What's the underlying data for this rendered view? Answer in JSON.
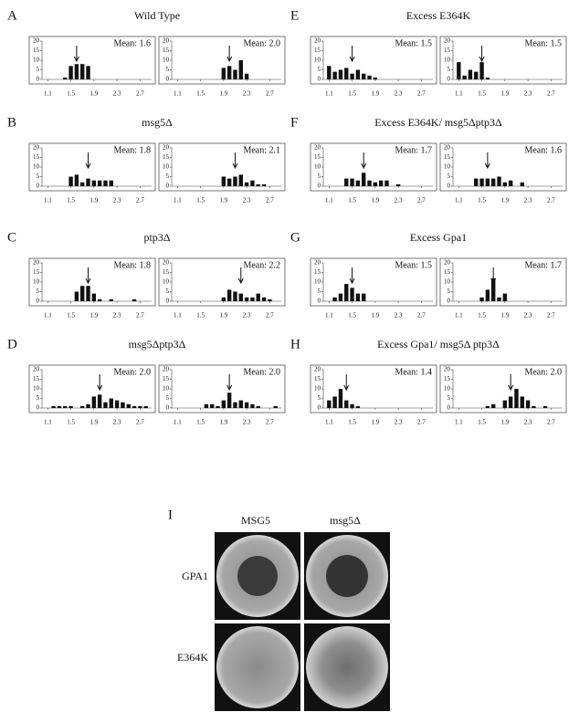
{
  "panels": [
    {
      "letter": "A",
      "title": "Wild Type"
    },
    {
      "letter": "B",
      "title": "msg5Δ"
    },
    {
      "letter": "C",
      "title": "ptp3Δ"
    },
    {
      "letter": "D",
      "title": "msg5Δptp3Δ"
    },
    {
      "letter": "E",
      "title": "Excess E364K"
    },
    {
      "letter": "F",
      "title": "Excess E364K/ msg5Δptp3Δ"
    },
    {
      "letter": "G",
      "title": "Excess Gpa1"
    },
    {
      "letter": "H",
      "title": "Excess Gpa1/ msg5Δ ptp3Δ"
    }
  ],
  "image_panel": {
    "letter": "I",
    "columns": [
      "MSG5",
      "msg5Δ"
    ],
    "rows": [
      "GPA1",
      "E364K"
    ]
  },
  "chart_data": [
    {
      "type": "bar",
      "annotation": "Mean: 1.6",
      "mean": 1.6,
      "x": [
        1.4,
        1.5,
        1.6,
        1.7,
        1.8
      ],
      "values": [
        1,
        7,
        8,
        8,
        7
      ],
      "xlim": [
        1.0,
        2.9
      ],
      "ylim": [
        0,
        20
      ],
      "xticks": [
        1.1,
        1.5,
        1.9,
        2.3,
        2.7
      ],
      "yticks": [
        0,
        5,
        10,
        15,
        20
      ]
    },
    {
      "type": "bar",
      "annotation": "Mean: 2.0",
      "mean": 2.0,
      "x": [
        1.9,
        2.0,
        2.1,
        2.2,
        2.3
      ],
      "values": [
        6,
        7,
        5,
        10,
        3
      ],
      "xlim": [
        1.0,
        2.9
      ],
      "ylim": [
        0,
        20
      ],
      "xticks": [
        1.1,
        1.5,
        1.9,
        2.3,
        2.7
      ],
      "yticks": [
        0,
        5,
        10,
        15,
        20
      ]
    },
    {
      "type": "bar",
      "annotation": "Mean: 1.8",
      "mean": 1.8,
      "x": [
        1.5,
        1.6,
        1.7,
        1.8,
        1.9,
        2.0,
        2.1,
        2.2
      ],
      "values": [
        5,
        6,
        2,
        4,
        3,
        3,
        3,
        3
      ],
      "xlim": [
        1.0,
        2.9
      ],
      "ylim": [
        0,
        20
      ],
      "xticks": [
        1.1,
        1.5,
        1.9,
        2.3,
        2.7
      ],
      "yticks": [
        0,
        5,
        10,
        15,
        20
      ]
    },
    {
      "type": "bar",
      "annotation": "Mean: 2.1",
      "mean": 2.1,
      "x": [
        1.9,
        2.0,
        2.1,
        2.2,
        2.3,
        2.4,
        2.5,
        2.6
      ],
      "values": [
        5,
        4,
        5,
        6,
        2,
        3,
        1,
        1
      ],
      "xlim": [
        1.0,
        2.9
      ],
      "ylim": [
        0,
        20
      ],
      "xticks": [
        1.1,
        1.5,
        1.9,
        2.3,
        2.7
      ],
      "yticks": [
        0,
        5,
        10,
        15,
        20
      ]
    },
    {
      "type": "bar",
      "annotation": "Mean: 1.8",
      "mean": 1.8,
      "x": [
        1.6,
        1.7,
        1.8,
        1.9,
        2.0,
        2.2,
        2.6
      ],
      "values": [
        5,
        8,
        8,
        4,
        1,
        1,
        1
      ],
      "xlim": [
        1.0,
        2.9
      ],
      "ylim": [
        0,
        20
      ],
      "xticks": [
        1.1,
        1.5,
        1.9,
        2.3,
        2.7
      ],
      "yticks": [
        0,
        5,
        10,
        15,
        20
      ]
    },
    {
      "type": "bar",
      "annotation": "Mean: 2.2",
      "mean": 2.2,
      "x": [
        1.9,
        2.0,
        2.1,
        2.2,
        2.3,
        2.4,
        2.5,
        2.6,
        2.7
      ],
      "values": [
        2,
        6,
        5,
        4,
        2,
        2,
        4,
        2,
        1
      ],
      "xlim": [
        1.0,
        2.9
      ],
      "ylim": [
        0,
        20
      ],
      "xticks": [
        1.1,
        1.5,
        1.9,
        2.3,
        2.7
      ],
      "yticks": [
        0,
        5,
        10,
        15,
        20
      ]
    },
    {
      "type": "bar",
      "annotation": "Mean: 2.0",
      "mean": 2.0,
      "x": [
        1.2,
        1.3,
        1.4,
        1.5,
        1.7,
        1.8,
        1.9,
        2.0,
        2.1,
        2.2,
        2.3,
        2.4,
        2.5,
        2.6,
        2.7,
        2.8
      ],
      "values": [
        1,
        1,
        1,
        1,
        1,
        2,
        6,
        7,
        3,
        5,
        4,
        3,
        2,
        1,
        1,
        1
      ],
      "xlim": [
        1.0,
        2.9
      ],
      "ylim": [
        0,
        20
      ],
      "xticks": [
        1.1,
        1.5,
        1.9,
        2.3,
        2.7
      ],
      "yticks": [
        0,
        5,
        10,
        15,
        20
      ]
    },
    {
      "type": "bar",
      "annotation": "Mean: 2.0",
      "mean": 2.0,
      "x": [
        1.6,
        1.7,
        1.8,
        1.9,
        2.0,
        2.1,
        2.2,
        2.3,
        2.4,
        2.5,
        2.8
      ],
      "values": [
        2,
        2,
        1,
        4,
        8,
        3,
        4,
        3,
        2,
        1,
        1
      ],
      "xlim": [
        1.0,
        2.9
      ],
      "ylim": [
        0,
        20
      ],
      "xticks": [
        1.1,
        1.5,
        1.9,
        2.3,
        2.7
      ],
      "yticks": [
        0,
        5,
        10,
        15,
        20
      ]
    },
    {
      "type": "bar",
      "annotation": "Mean: 1.5",
      "mean": 1.5,
      "x": [
        1.1,
        1.2,
        1.3,
        1.4,
        1.5,
        1.6,
        1.7,
        1.8,
        1.9
      ],
      "values": [
        7,
        4,
        5,
        6,
        3,
        5,
        3,
        2,
        1
      ],
      "xlim": [
        1.0,
        2.9
      ],
      "ylim": [
        0,
        20
      ],
      "xticks": [
        1.1,
        1.5,
        1.9,
        2.3,
        2.7
      ],
      "yticks": [
        0,
        5,
        10,
        15,
        20
      ]
    },
    {
      "type": "bar",
      "annotation": "Mean: 1.5",
      "mean": 1.5,
      "x": [
        1.1,
        1.2,
        1.3,
        1.4,
        1.5,
        1.6
      ],
      "values": [
        9,
        2,
        5,
        4,
        9,
        1
      ],
      "xlim": [
        1.0,
        2.9
      ],
      "ylim": [
        0,
        20
      ],
      "xticks": [
        1.1,
        1.5,
        1.9,
        2.3,
        2.7
      ],
      "yticks": [
        0,
        5,
        10,
        15,
        20
      ]
    },
    {
      "type": "bar",
      "annotation": "Mean: 1.7",
      "mean": 1.7,
      "x": [
        1.4,
        1.5,
        1.6,
        1.7,
        1.8,
        1.9,
        2.0,
        2.1,
        2.3
      ],
      "values": [
        4,
        4,
        3,
        7,
        3,
        2,
        3,
        3,
        1
      ],
      "xlim": [
        1.0,
        2.9
      ],
      "ylim": [
        0,
        20
      ],
      "xticks": [
        1.1,
        1.5,
        1.9,
        2.3,
        2.7
      ],
      "yticks": [
        0,
        5,
        10,
        15,
        20
      ]
    },
    {
      "type": "bar",
      "annotation": "Mean: 1.6",
      "mean": 1.6,
      "x": [
        1.4,
        1.5,
        1.6,
        1.7,
        1.8,
        1.9,
        2.0,
        2.2
      ],
      "values": [
        4,
        4,
        4,
        4,
        5,
        2,
        3,
        2
      ],
      "xlim": [
        1.0,
        2.9
      ],
      "ylim": [
        0,
        20
      ],
      "xticks": [
        1.1,
        1.5,
        1.9,
        2.3,
        2.7
      ],
      "yticks": [
        0,
        5,
        10,
        15,
        20
      ]
    },
    {
      "type": "bar",
      "annotation": "Mean: 1.5",
      "mean": 1.5,
      "x": [
        1.2,
        1.3,
        1.4,
        1.5,
        1.6,
        1.7
      ],
      "values": [
        2,
        4,
        9,
        7,
        4,
        4
      ],
      "xlim": [
        1.0,
        2.9
      ],
      "ylim": [
        0,
        20
      ],
      "xticks": [
        1.1,
        1.5,
        1.9,
        2.3,
        2.7
      ],
      "yticks": [
        0,
        5,
        10,
        15,
        20
      ]
    },
    {
      "type": "bar",
      "annotation": "Mean: 1.7",
      "mean": 1.7,
      "x": [
        1.5,
        1.6,
        1.7,
        1.8,
        1.9
      ],
      "values": [
        2,
        6,
        12,
        2,
        4
      ],
      "xlim": [
        1.0,
        2.9
      ],
      "ylim": [
        0,
        20
      ],
      "xticks": [
        1.1,
        1.5,
        1.9,
        2.3,
        2.7
      ],
      "yticks": [
        0,
        5,
        10,
        15,
        20
      ]
    },
    {
      "type": "bar",
      "annotation": "Mean: 1.4",
      "mean": 1.4,
      "x": [
        1.1,
        1.2,
        1.3,
        1.4,
        1.5,
        1.6
      ],
      "values": [
        4,
        6,
        10,
        4,
        2,
        1
      ],
      "xlim": [
        1.0,
        2.9
      ],
      "ylim": [
        0,
        20
      ],
      "xticks": [
        1.1,
        1.5,
        1.9,
        2.3,
        2.7
      ],
      "yticks": [
        0,
        5,
        10,
        15,
        20
      ]
    },
    {
      "type": "bar",
      "annotation": "Mean: 2.0",
      "mean": 2.0,
      "x": [
        1.6,
        1.7,
        1.9,
        2.0,
        2.1,
        2.2,
        2.3,
        2.4,
        2.6
      ],
      "values": [
        1,
        2,
        4,
        6,
        10,
        6,
        4,
        1,
        1
      ],
      "xlim": [
        1.0,
        2.9
      ],
      "ylim": [
        0,
        20
      ],
      "xticks": [
        1.1,
        1.5,
        1.9,
        2.3,
        2.7
      ],
      "yticks": [
        0,
        5,
        10,
        15,
        20
      ]
    }
  ]
}
